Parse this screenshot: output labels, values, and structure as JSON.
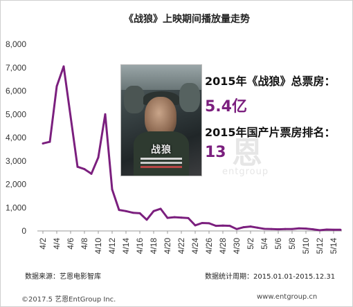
{
  "chart_data": {
    "type": "line",
    "title": "《战狼》上映期间播放量走势",
    "xlabel": "",
    "ylabel": "",
    "ylim": [
      0,
      8000
    ],
    "yticks": [
      0,
      1000,
      2000,
      3000,
      4000,
      5000,
      6000,
      7000,
      8000
    ],
    "ytick_labels": [
      "0",
      "1,000",
      "2,000",
      "3,000",
      "4,000",
      "5,000",
      "6,000",
      "7,000",
      "8,000"
    ],
    "x": [
      "4/2",
      "4/3",
      "4/4",
      "4/5",
      "4/6",
      "4/7",
      "4/8",
      "4/9",
      "4/10",
      "4/11",
      "4/12",
      "4/13",
      "4/14",
      "4/15",
      "4/16",
      "4/17",
      "4/18",
      "4/19",
      "4/20",
      "4/21",
      "4/22",
      "4/23",
      "4/24",
      "4/25",
      "4/26",
      "4/27",
      "4/28",
      "4/29",
      "4/30",
      "5/1",
      "5/2",
      "5/3",
      "5/4",
      "5/5",
      "5/6",
      "5/7",
      "5/8",
      "5/9",
      "5/10",
      "5/11",
      "5/12",
      "5/13",
      "5/14",
      "5/15"
    ],
    "xtick_labels": [
      "4/2",
      "4/4",
      "4/6",
      "4/8",
      "4/10",
      "4/12",
      "4/14",
      "4/16",
      "4/18",
      "4/20",
      "4/22",
      "4/24",
      "4/26",
      "4/28",
      "4/30",
      "5/2",
      "5/4",
      "5/6",
      "5/8",
      "5/10",
      "5/12",
      "5/14"
    ],
    "series": [
      {
        "values": [
          3750,
          3820,
          6200,
          7050,
          4900,
          2750,
          2650,
          2450,
          3150,
          5000,
          1780,
          900,
          850,
          780,
          760,
          480,
          850,
          950,
          560,
          590,
          570,
          550,
          240,
          340,
          330,
          220,
          230,
          220,
          80,
          160,
          190,
          140,
          90,
          80,
          70,
          80,
          80,
          110,
          100,
          70,
          30,
          60,
          50,
          50
        ]
      }
    ],
    "grid": false,
    "legend": "none",
    "line_color": "#7b1f7e"
  },
  "info": {
    "box_office_label": "2015年《战狼》总票房：",
    "box_office_value": "5.4亿",
    "rank_label": "2015年国产片票房排名：",
    "rank_value": "13"
  },
  "watermark": {
    "char": "恩",
    "text": "entgroup"
  },
  "footer": {
    "source": "数据来源：艺恩电影智库",
    "period": "数据统计周期：2015.01.01-2015.12.31",
    "copyright": "©2017.5  艺恩EntGroup Inc.",
    "website": "www.entgroup.cn"
  },
  "poster": {
    "title": "战狼"
  }
}
